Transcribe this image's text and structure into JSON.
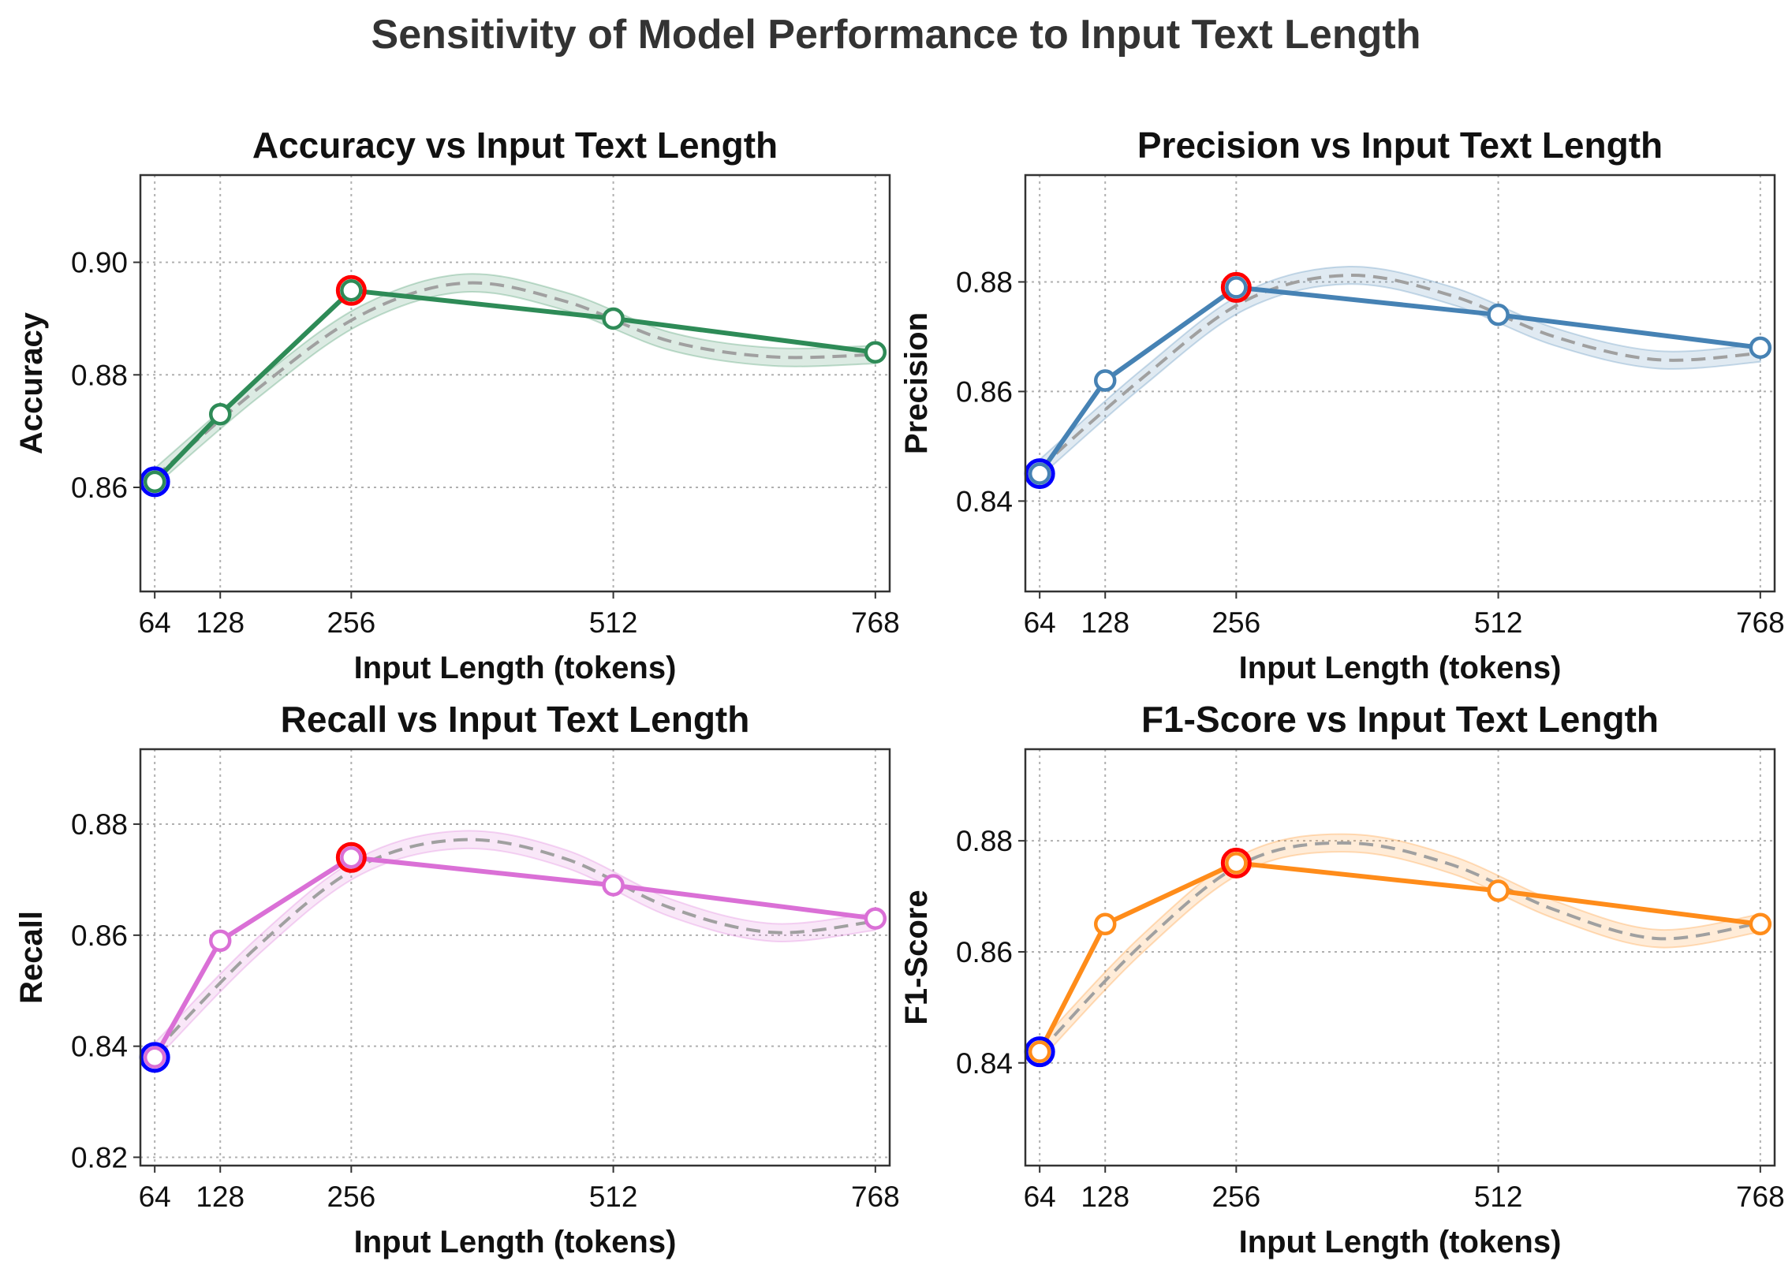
{
  "figure_title": "Sensitivity of Model Performance to Input Text Length",
  "chart_data": [
    {
      "type": "line",
      "title": "Accuracy vs Input Text Length",
      "xlabel": "Input Length (tokens)",
      "ylabel": "Accuracy",
      "x": [
        64,
        128,
        256,
        512,
        768
      ],
      "x_ticks": [
        "64",
        "128",
        "256",
        "512",
        "768"
      ],
      "xlim": [
        50,
        782
      ],
      "values": [
        0.861,
        0.873,
        0.895,
        0.89,
        0.884
      ],
      "ylim": [
        0.8415,
        0.9155
      ],
      "y_ticks": [
        0.86,
        0.88,
        0.9
      ],
      "y_tick_labels": [
        "0.86",
        "0.88",
        "0.90"
      ],
      "color": "#2e8b57",
      "trend": [
        0.8618,
        0.8775,
        0.8906,
        0.8963,
        0.893,
        0.886,
        0.8832,
        0.8836
      ],
      "best_index": 2,
      "worst_index": 0,
      "best_color": "#ff0000",
      "worst_color": "#0000ff",
      "grid": true
    },
    {
      "type": "line",
      "title": "Precision vs Input Text Length",
      "xlabel": "Input Length (tokens)",
      "ylabel": "Precision",
      "x": [
        64,
        128,
        256,
        512,
        768
      ],
      "x_ticks": [
        "64",
        "128",
        "256",
        "512",
        "768"
      ],
      "xlim": [
        50,
        782
      ],
      "values": [
        0.845,
        0.862,
        0.879,
        0.874,
        0.868
      ],
      "ylim": [
        0.8235,
        0.8995
      ],
      "y_ticks": [
        0.84,
        0.86,
        0.88
      ],
      "y_tick_labels": [
        "0.84",
        "0.86",
        "0.88"
      ],
      "color": "#4682b4",
      "trend": [
        0.846,
        0.8625,
        0.8766,
        0.8812,
        0.8775,
        0.87,
        0.8658,
        0.867
      ],
      "best_index": 2,
      "worst_index": 0,
      "best_color": "#ff0000",
      "worst_color": "#0000ff",
      "grid": true
    },
    {
      "type": "line",
      "title": "Recall vs Input Text Length",
      "xlabel": "Input Length (tokens)",
      "ylabel": "Recall",
      "x": [
        64,
        128,
        256,
        512,
        768
      ],
      "x_ticks": [
        "64",
        "128",
        "256",
        "512",
        "768"
      ],
      "xlim": [
        50,
        782
      ],
      "values": [
        0.838,
        0.859,
        0.874,
        0.869,
        0.863
      ],
      "ylim": [
        0.8185,
        0.8935
      ],
      "y_ticks": [
        0.82,
        0.84,
        0.86,
        0.88
      ],
      "y_tick_labels": [
        "0.82",
        "0.84",
        "0.86",
        "0.88"
      ],
      "color": "#da70d6",
      "trend": [
        0.839,
        0.858,
        0.8725,
        0.8772,
        0.8737,
        0.865,
        0.8605,
        0.8625
      ],
      "best_index": 2,
      "worst_index": 0,
      "best_color": "#ff0000",
      "worst_color": "#0000ff",
      "grid": true
    },
    {
      "type": "line",
      "title": "F1-Score vs Input Text Length",
      "xlabel": "Input Length (tokens)",
      "ylabel": "F1-Score",
      "x": [
        64,
        128,
        256,
        512,
        768
      ],
      "x_ticks": [
        "64",
        "128",
        "256",
        "512",
        "768"
      ],
      "xlim": [
        50,
        782
      ],
      "values": [
        0.842,
        0.865,
        0.876,
        0.871,
        0.865
      ],
      "ylim": [
        0.8215,
        0.8965
      ],
      "y_ticks": [
        0.84,
        0.86,
        0.88
      ],
      "y_tick_labels": [
        "0.84",
        "0.86",
        "0.88"
      ],
      "color": "#ff8c1a",
      "trend": [
        0.842,
        0.8615,
        0.8762,
        0.8796,
        0.8757,
        0.8676,
        0.8624,
        0.8652
      ],
      "best_index": 2,
      "worst_index": 0,
      "best_color": "#ff0000",
      "worst_color": "#0000ff",
      "grid": true
    }
  ]
}
